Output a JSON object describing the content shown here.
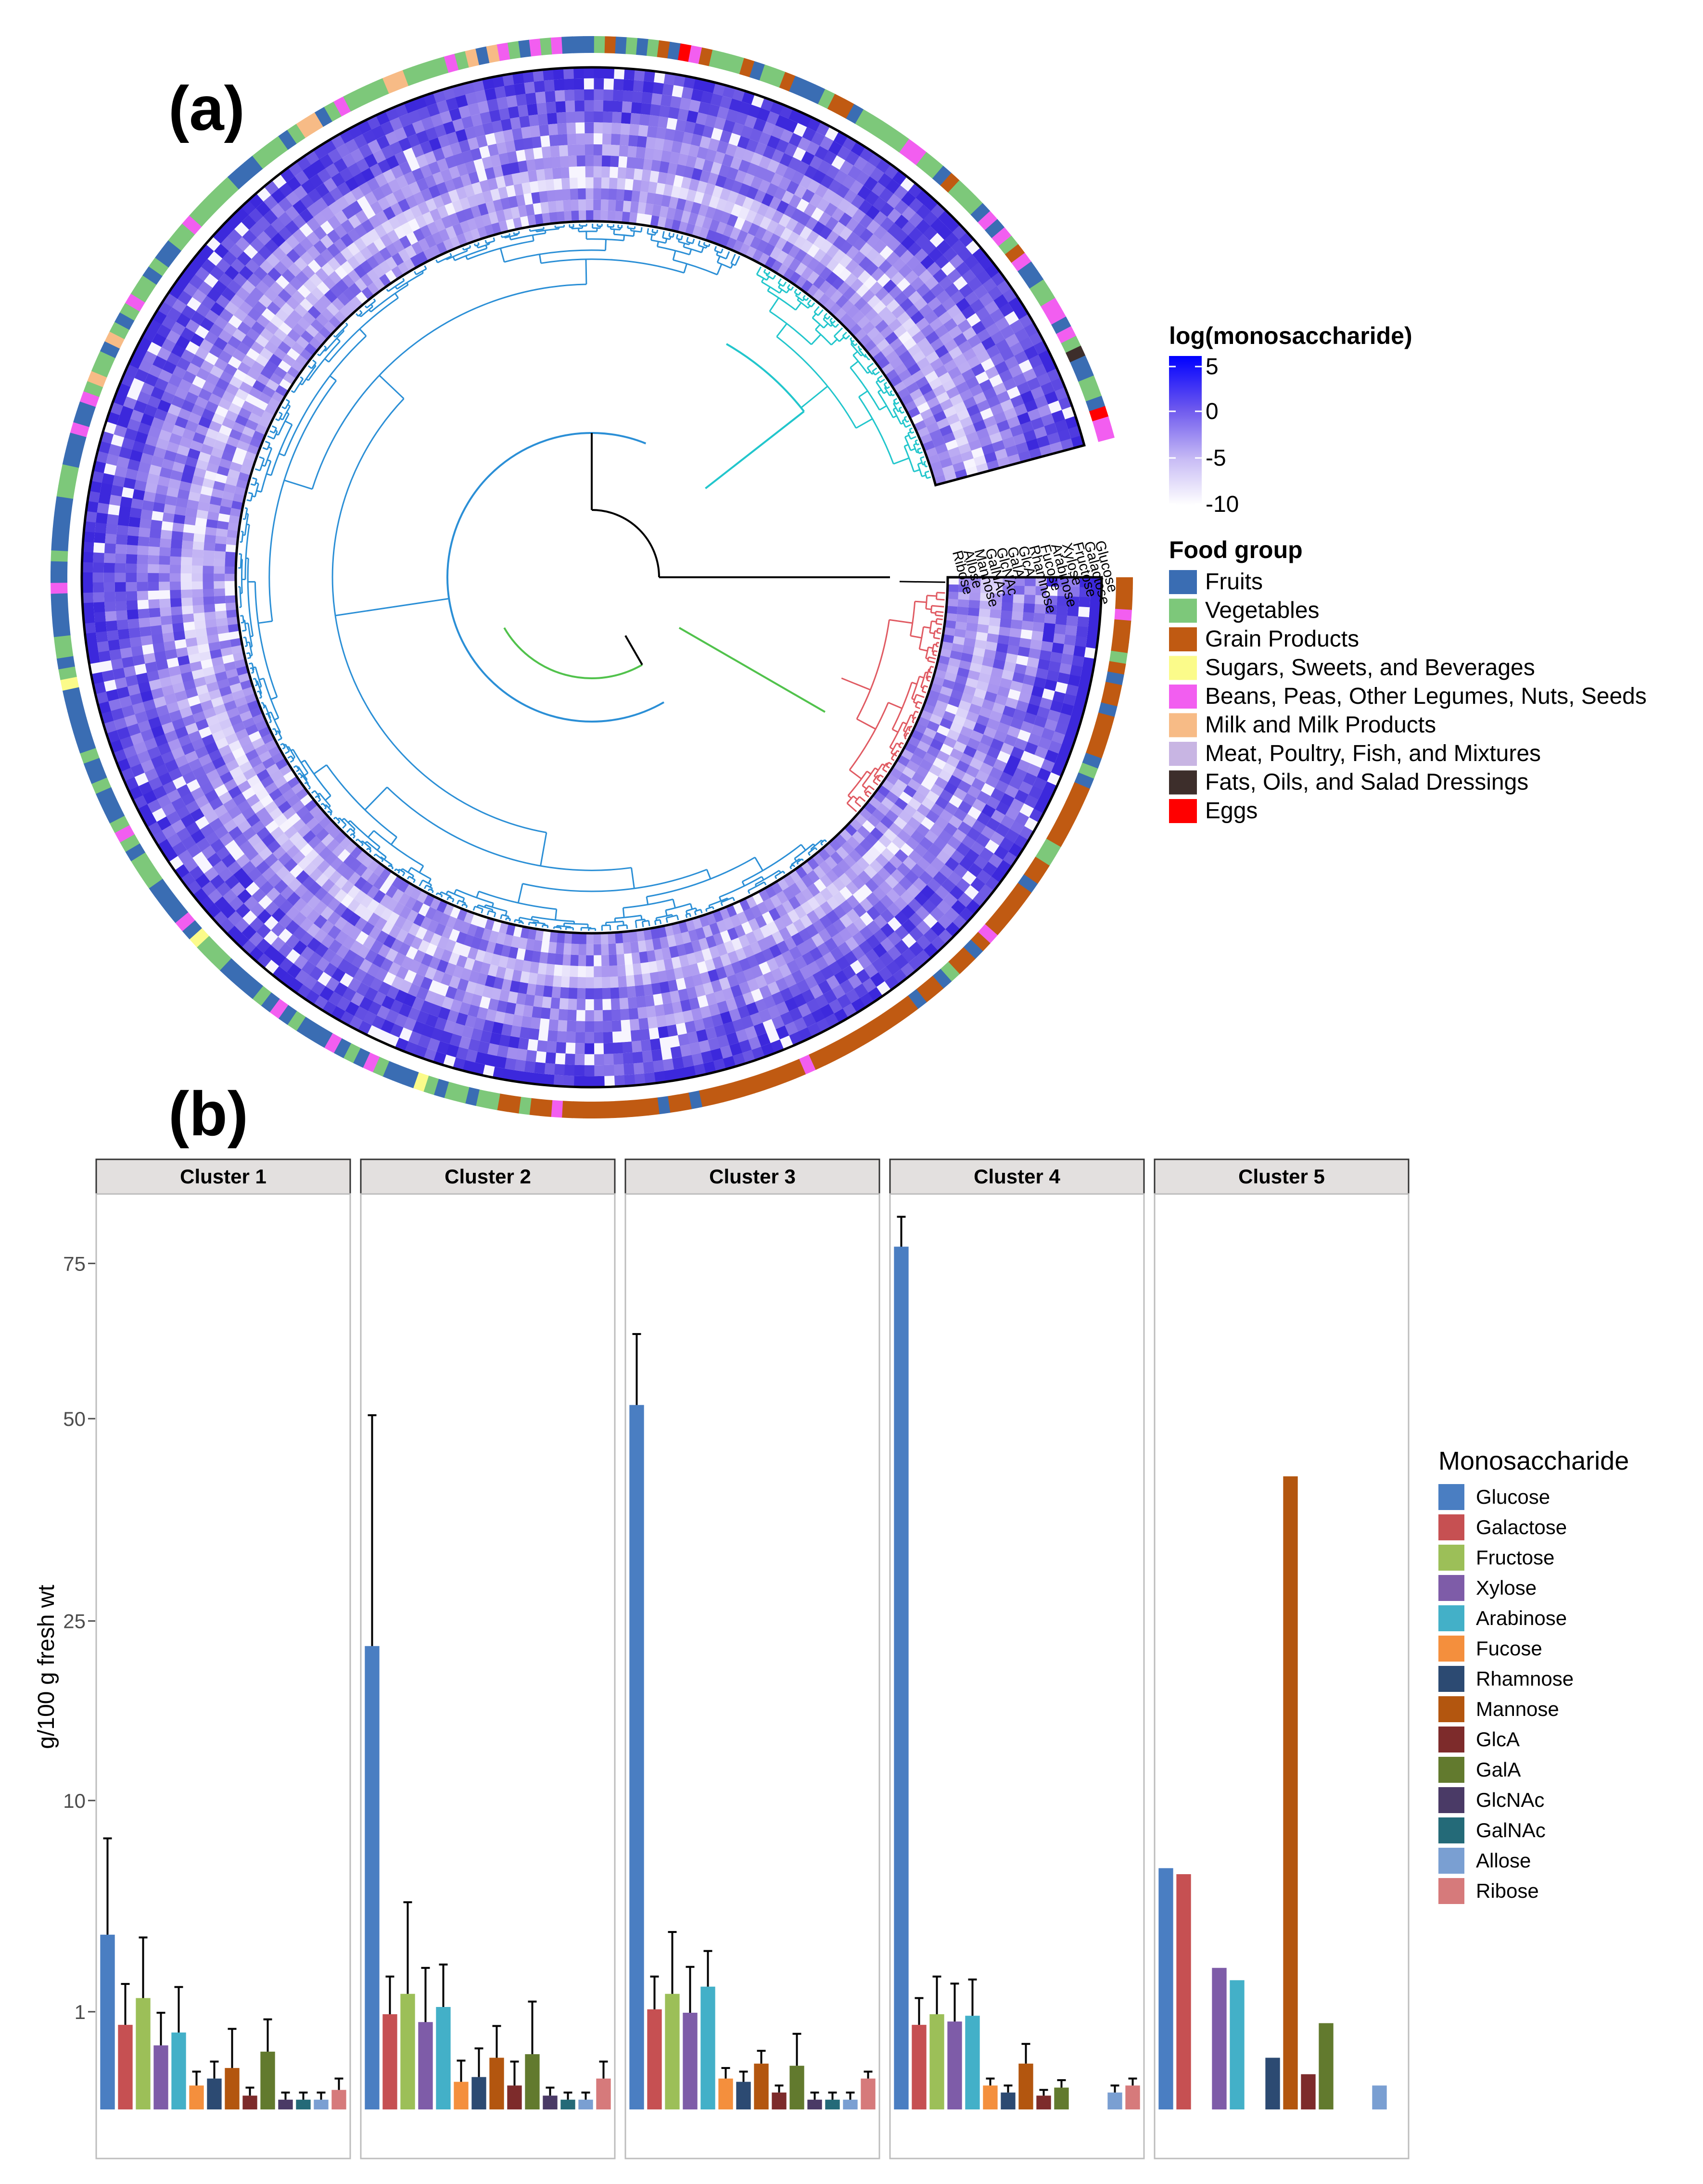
{
  "panel_a": {
    "label": "(a)",
    "rings_outer_to_inner": [
      "Glucose",
      "Galactose",
      "Fructose",
      "Xylose",
      "Arabinose",
      "Fucose",
      "Rhamnose",
      "GlcA",
      "GalA",
      "GlcNAc",
      "GalNAc",
      "Mannose",
      "Allose",
      "Ribose"
    ],
    "ring_label_order": [
      "Glucose",
      "Galactose",
      "Fructose",
      "Xylose",
      "Arabinose",
      "Fucose",
      "Rhamnose",
      "GlcA",
      "GalA",
      "GlcNAc",
      "GalNAc",
      "Mannose",
      "Allose",
      "Ribose"
    ],
    "colorbar": {
      "title": "log(monosaccharide)",
      "ticks": [
        "5",
        "0",
        "-5",
        "-10"
      ],
      "low_color": "#ffffff",
      "high_color": "#0000ff"
    },
    "food_group_legend": {
      "title": "Food group",
      "items": [
        {
          "label": "Fruits",
          "color": "#3a6db3"
        },
        {
          "label": "Vegetables",
          "color": "#7dc87a"
        },
        {
          "label": "Grain Products",
          "color": "#c05a12"
        },
        {
          "label": "Sugars, Sweets, and Beverages",
          "color": "#fbfb8a"
        },
        {
          "label": "Beans, Peas, Other Legumes, Nuts, Seeds",
          "color": "#f25ef0"
        },
        {
          "label": "Milk and Milk Products",
          "color": "#f7bb86"
        },
        {
          "label": "Meat, Poultry, Fish, and Mixtures",
          "color": "#c8b5e3"
        },
        {
          "label": "Fats, Oils, and Salad Dressings",
          "color": "#3d2e2b"
        },
        {
          "label": "Eggs",
          "color": "#ff0000"
        }
      ]
    },
    "dendrogram_colors": {
      "root": "#000000",
      "cluster_red": "#e05a62",
      "cluster_green": "#51c24c",
      "cluster_blue": "#2b8fd6",
      "cluster_cyan": "#22c6cc"
    }
  },
  "panel_b": {
    "label": "(b)",
    "y_axis_title": "g/100 g fresh wt",
    "y_ticks": [
      "1",
      "10",
      "25",
      "50",
      "75"
    ],
    "legend_title": "Monosaccharide",
    "chart_data": {
      "type": "bar",
      "scale": "sqrt-like transformed y axis",
      "series_names": [
        "Glucose",
        "Galactose",
        "Fructose",
        "Xylose",
        "Arabinose",
        "Fucose",
        "Rhamnose",
        "Mannose",
        "GlcA",
        "GalA",
        "GlcNAc",
        "GalNAc",
        "Allose",
        "Ribose"
      ],
      "series_colors": [
        "#4a7ec2",
        "#c65052",
        "#9cbf58",
        "#7e5ca8",
        "#43b0c8",
        "#f48f3d",
        "#2c4a72",
        "#b3560f",
        "#7d2b2b",
        "#627a2e",
        "#4a3a66",
        "#246a78",
        "#7a9fd2",
        "#d67a7b"
      ],
      "panels": [
        {
          "strip": "Cluster 1",
          "values": [
            3.2,
            0.75,
            1.3,
            0.43,
            0.62,
            0.06,
            0.1,
            0.18,
            0.02,
            0.35,
            0.01,
            0.01,
            0.01,
            0.04
          ],
          "errors": [
            4.5,
            0.9,
            1.8,
            0.55,
            0.95,
            0.09,
            0.14,
            0.5,
            0.03,
            0.5,
            0.02,
            0.02,
            0.02,
            0.06
          ]
        },
        {
          "strip": "Cluster 2",
          "values": [
            22.5,
            0.95,
            1.4,
            0.8,
            1.1,
            0.08,
            0.11,
            0.28,
            0.06,
            0.32,
            0.02,
            0.01,
            0.01,
            0.1
          ],
          "errors": [
            28,
            0.9,
            3.1,
            1.3,
            1.1,
            0.17,
            0.28,
            0.45,
            0.18,
            0.9,
            0.03,
            0.02,
            0.02,
            0.14
          ]
        },
        {
          "strip": "Cluster 3",
          "values": [
            52,
            1.05,
            1.4,
            0.98,
            1.58,
            0.1,
            0.08,
            0.22,
            0.03,
            0.2,
            0.01,
            0.01,
            0.01,
            0.1
          ],
          "errors": [
            11,
            0.8,
            1.9,
            1.15,
            1.05,
            0.08,
            0.07,
            0.14,
            0.03,
            0.4,
            0.02,
            0.02,
            0.02,
            0.05
          ]
        },
        {
          "strip": "Cluster 4",
          "values": [
            78,
            0.75,
            0.95,
            0.81,
            0.92,
            0.06,
            0.03,
            0.22,
            0.02,
            0.05,
            0.0,
            0.0,
            0.03,
            0.06
          ],
          "errors": [
            5.5,
            0.55,
            0.9,
            0.85,
            0.85,
            0.04,
            0.03,
            0.23,
            0.02,
            0.04,
            0.0,
            0.0,
            0.03,
            0.04
          ]
        },
        {
          "strip": "Cluster 5",
          "values": [
            6.1,
            5.8,
            0.0,
            2.1,
            1.75,
            0.0,
            0.28,
            42,
            0.13,
            0.78,
            0.0,
            0.0,
            0.06,
            0.0
          ],
          "errors": [
            0,
            0,
            0,
            0,
            0,
            0,
            0,
            0,
            0,
            0,
            0,
            0,
            0,
            0
          ]
        }
      ]
    }
  }
}
